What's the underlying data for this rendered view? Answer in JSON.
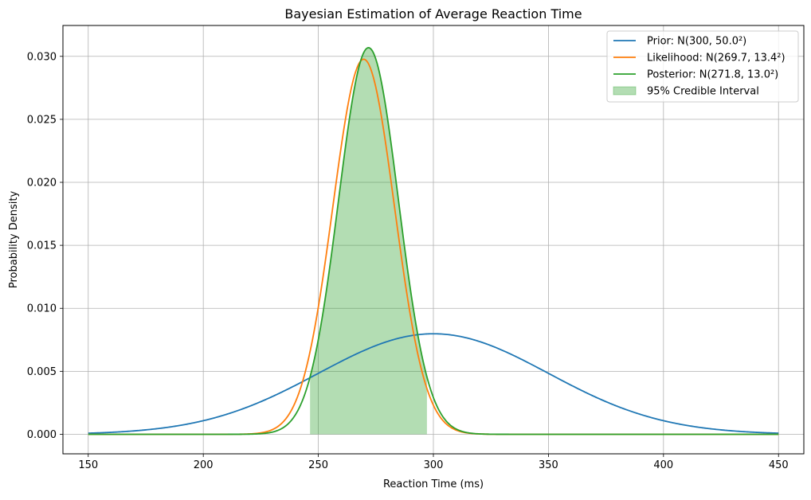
{
  "chart_data": {
    "type": "line",
    "title": "Bayesian Estimation of Average Reaction Time",
    "xlabel": "Reaction Time (ms)",
    "ylabel": "Probability Density",
    "xlim": [
      139,
      461
    ],
    "ylim": [
      -0.00155,
      0.03245
    ],
    "x_ticks": [
      150,
      200,
      250,
      300,
      350,
      400,
      450
    ],
    "y_ticks": [
      0.0,
      0.005,
      0.01,
      0.015,
      0.02,
      0.025,
      0.03
    ],
    "x_tick_labels": [
      "150",
      "200",
      "250",
      "300",
      "350",
      "400",
      "450"
    ],
    "y_tick_labels": [
      "0.000",
      "0.005",
      "0.010",
      "0.015",
      "0.020",
      "0.025",
      "0.030"
    ],
    "x_range": [
      150,
      450
    ],
    "grid": true,
    "legend_position": "top-right",
    "series": [
      {
        "name": "Prior: N(300, 50.0²)",
        "distribution": "normal",
        "mean": 300,
        "sd": 50.0,
        "color": "#1f77b4"
      },
      {
        "name": "Likelihood: N(269.7, 13.4²)",
        "distribution": "normal",
        "mean": 269.7,
        "sd": 13.4,
        "color": "#ff7f0e"
      },
      {
        "name": "Posterior: N(271.8, 13.0²)",
        "distribution": "normal",
        "mean": 271.8,
        "sd": 13.0,
        "color": "#2ca02c"
      }
    ],
    "credible_interval": {
      "name": "95% Credible Interval",
      "lower": 246.4,
      "upper": 297.2,
      "series": "Posterior: N(271.8, 13.0²)",
      "color": "#2ca02c"
    }
  }
}
